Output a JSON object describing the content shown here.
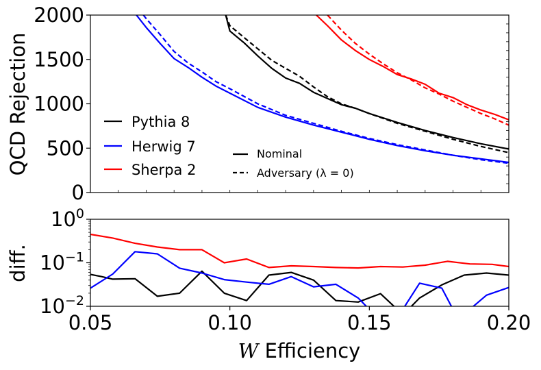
{
  "chart_data": [
    {
      "type": "line",
      "panel": "top",
      "xlabel": "",
      "ylabel": "QCD Rejection",
      "xlim": [
        0.05,
        0.2
      ],
      "ylim": [
        0,
        2000
      ],
      "yticks": [
        0,
        500,
        1000,
        1500,
        2000
      ],
      "ytick_labels": [
        "0",
        "500",
        "1000",
        "1500",
        "2000"
      ],
      "grid": false,
      "legend_generators": {
        "placement": "lower-left",
        "entries": [
          {
            "name": "Pythia 8",
            "color": "#000000"
          },
          {
            "name": "Herwig 7",
            "color": "#0000ff"
          },
          {
            "name": "Sherpa 2",
            "color": "#ff0000"
          }
        ]
      },
      "legend_styles": {
        "placement": "lower-center",
        "entries": [
          {
            "name": "Nominal",
            "linestyle": "solid"
          },
          {
            "name": "Adversary (λ = 0)",
            "linestyle": "dashed"
          }
        ]
      },
      "series": [
        {
          "name": "Pythia 8",
          "variant": "Nominal",
          "color": "#000000",
          "linestyle": "solid",
          "x": [
            0.0985,
            0.1,
            0.105,
            0.11,
            0.115,
            0.12,
            0.125,
            0.13,
            0.135,
            0.14,
            0.145,
            0.15,
            0.16,
            0.17,
            0.18,
            0.19,
            0.2
          ],
          "y": [
            2000,
            1820,
            1690,
            1540,
            1400,
            1290,
            1230,
            1130,
            1060,
            990,
            950,
            890,
            790,
            700,
            620,
            550,
            490
          ]
        },
        {
          "name": "Pythia 8",
          "variant": "Adversary (λ = 0)",
          "color": "#000000",
          "linestyle": "dashed",
          "x": [
            0.0985,
            0.1,
            0.105,
            0.11,
            0.115,
            0.12,
            0.125,
            0.13,
            0.135,
            0.14,
            0.145,
            0.15,
            0.16,
            0.17,
            0.18,
            0.19,
            0.2
          ],
          "y": [
            2000,
            1880,
            1750,
            1620,
            1490,
            1400,
            1310,
            1190,
            1080,
            1000,
            950,
            890,
            780,
            690,
            600,
            520,
            450
          ]
        },
        {
          "name": "Herwig 7",
          "variant": "Nominal",
          "color": "#0000ff",
          "linestyle": "solid",
          "x": [
            0.0665,
            0.07,
            0.075,
            0.08,
            0.085,
            0.09,
            0.095,
            0.1,
            0.11,
            0.12,
            0.13,
            0.14,
            0.15,
            0.16,
            0.17,
            0.18,
            0.19,
            0.2
          ],
          "y": [
            2000,
            1860,
            1680,
            1510,
            1410,
            1300,
            1200,
            1120,
            960,
            850,
            760,
            680,
            600,
            530,
            470,
            420,
            380,
            340
          ]
        },
        {
          "name": "Herwig 7",
          "variant": "Adversary (λ = 0)",
          "color": "#0000ff",
          "linestyle": "dashed",
          "x": [
            0.069,
            0.07,
            0.075,
            0.08,
            0.085,
            0.09,
            0.095,
            0.1,
            0.11,
            0.12,
            0.13,
            0.14,
            0.15,
            0.16,
            0.17,
            0.18,
            0.19,
            0.2
          ],
          "y": [
            2000,
            1960,
            1780,
            1590,
            1460,
            1360,
            1250,
            1170,
            1000,
            870,
            780,
            690,
            610,
            540,
            480,
            420,
            370,
            330
          ]
        },
        {
          "name": "Sherpa 2",
          "variant": "Nominal",
          "color": "#ff0000",
          "linestyle": "solid",
          "x": [
            0.131,
            0.135,
            0.14,
            0.145,
            0.15,
            0.155,
            0.16,
            0.165,
            0.17,
            0.175,
            0.18,
            0.185,
            0.19,
            0.195,
            0.2
          ],
          "y": [
            2000,
            1880,
            1720,
            1600,
            1500,
            1420,
            1330,
            1280,
            1220,
            1120,
            1070,
            990,
            930,
            880,
            820
          ]
        },
        {
          "name": "Sherpa 2",
          "variant": "Adversary (λ = 0)",
          "color": "#ff0000",
          "linestyle": "dashed",
          "x": [
            0.135,
            0.14,
            0.145,
            0.15,
            0.155,
            0.16,
            0.165,
            0.17,
            0.175,
            0.18,
            0.185,
            0.19,
            0.195,
            0.2
          ],
          "y": [
            2000,
            1830,
            1680,
            1560,
            1450,
            1350,
            1270,
            1180,
            1110,
            1030,
            960,
            890,
            830,
            760
          ]
        }
      ]
    },
    {
      "type": "line",
      "panel": "bottom",
      "xlabel": "W Efficiency",
      "ylabel": "diff.",
      "xlim": [
        0.05,
        0.2
      ],
      "xticks": [
        0.05,
        0.1,
        0.15,
        0.2
      ],
      "xtick_labels": [
        "0.05",
        "0.10",
        "0.15",
        "0.20"
      ],
      "ylim": [
        0.01,
        1
      ],
      "yscale": "log",
      "yticks": [
        {
          "value": 1,
          "base": "10",
          "exp": "0"
        },
        {
          "value": 0.1,
          "base": "10",
          "exp": "−1"
        },
        {
          "value": 0.01,
          "base": "10",
          "exp": "−2"
        }
      ],
      "grid": false,
      "series": [
        {
          "name": "Pythia 8",
          "color": "#000000",
          "x": [
            0.05,
            0.054,
            0.058,
            0.066,
            0.074,
            0.082,
            0.09,
            0.098,
            0.106,
            0.114,
            0.122,
            0.13,
            0.138,
            0.146,
            0.154,
            0.16,
            0.164,
            0.168,
            0.176,
            0.184,
            0.192,
            0.2
          ],
          "y": [
            0.054,
            0.048,
            0.042,
            0.043,
            0.017,
            0.02,
            0.064,
            0.02,
            0.0135,
            0.052,
            0.06,
            0.04,
            0.0135,
            0.0125,
            0.0195,
            0.0085,
            0.0085,
            0.0155,
            0.031,
            0.052,
            0.058,
            0.052
          ]
        },
        {
          "name": "Herwig 7",
          "color": "#0000ff",
          "x": [
            0.05,
            0.058,
            0.066,
            0.074,
            0.082,
            0.09,
            0.098,
            0.106,
            0.114,
            0.122,
            0.13,
            0.138,
            0.146,
            0.15,
            0.162,
            0.168,
            0.176,
            0.18,
            0.186,
            0.192,
            0.2
          ],
          "y": [
            0.026,
            0.055,
            0.18,
            0.16,
            0.075,
            0.058,
            0.041,
            0.036,
            0.032,
            0.048,
            0.028,
            0.032,
            0.0155,
            0.0085,
            0.0085,
            0.034,
            0.026,
            0.0085,
            0.0085,
            0.018,
            0.027
          ]
        },
        {
          "name": "Sherpa 2",
          "color": "#ff0000",
          "x": [
            0.05,
            0.058,
            0.066,
            0.074,
            0.082,
            0.09,
            0.098,
            0.106,
            0.114,
            0.122,
            0.13,
            0.138,
            0.146,
            0.154,
            0.162,
            0.17,
            0.178,
            0.186,
            0.194,
            0.2
          ],
          "y": [
            0.45,
            0.37,
            0.28,
            0.23,
            0.2,
            0.2,
            0.1,
            0.122,
            0.078,
            0.085,
            0.082,
            0.078,
            0.076,
            0.082,
            0.08,
            0.088,
            0.108,
            0.094,
            0.092,
            0.082
          ]
        }
      ]
    }
  ]
}
